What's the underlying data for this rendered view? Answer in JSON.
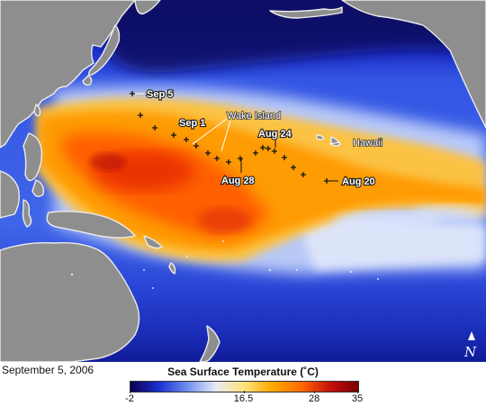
{
  "map": {
    "labels": {
      "sep5": "Sep 5",
      "sep1": "Sep 1",
      "wake": "Wake Island",
      "aug24": "Aug 24",
      "hawaii": "Hawaii",
      "aug28": "Aug 28",
      "aug20": "Aug 20"
    },
    "north_symbol": "N",
    "icons": [
      "north-arrow-icon",
      "storm-track-cross-icon"
    ]
  },
  "caption": {
    "date": "September 5, 2006"
  },
  "legend": {
    "title": "Sea Surface Temperature (˚C)",
    "ticks": [
      "-2",
      "16.5",
      "28",
      "35"
    ],
    "tick_values": [
      -2,
      16.5,
      28,
      35
    ],
    "min": -2,
    "max": 35,
    "colors": [
      "#0a0050",
      "#1a2fd0",
      "#6f8ff0",
      "#e6ebf7",
      "#ffe27a",
      "#ffa800",
      "#ff6a00",
      "#c8100c",
      "#7a0000"
    ]
  },
  "colors": {
    "land": "#8e8e8e",
    "coast": "#e9e9e9",
    "deep_ocean": "#0a0a78",
    "warm_pool": "#ff8a00"
  }
}
